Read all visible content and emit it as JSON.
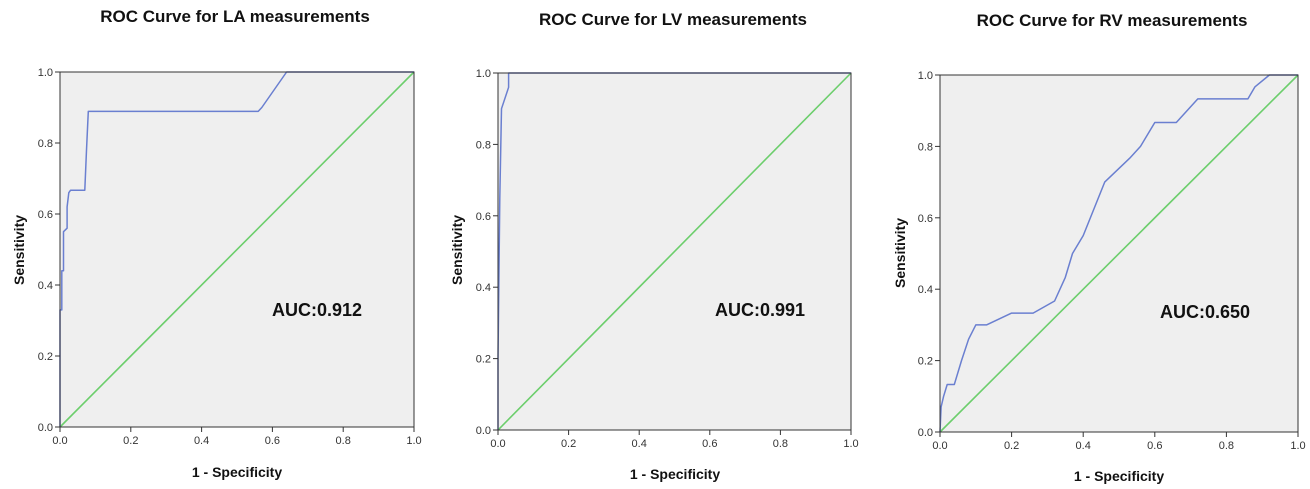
{
  "colors": {
    "plot_bg": "#efefef",
    "roc_line": "#6a7fd0",
    "reference_line": "#6cce6c",
    "frame": "#333333"
  },
  "chart_data": [
    {
      "type": "line",
      "title": "ROC Curve for LA measurements",
      "xlabel": "1 - Specificity",
      "ylabel": "Sensitivity",
      "xlim": [
        0,
        1
      ],
      "ylim": [
        0,
        1
      ],
      "x_ticks": [
        "0.0",
        "0.2",
        "0.4",
        "0.6",
        "0.8",
        "1.0"
      ],
      "y_ticks": [
        "0.0",
        "0.2",
        "0.4",
        "0.6",
        "0.8",
        "1.0"
      ],
      "annotation": "AUC:0.912",
      "grid": false,
      "series": [
        {
          "x": [
            0,
            0,
            0.005,
            0.005,
            0.01,
            0.01,
            0.02,
            0.02,
            0.025,
            0.03,
            0.06,
            0.07,
            0.075,
            0.08,
            0.56,
            0.57,
            0.64,
            1.0
          ],
          "y": [
            0,
            0.33,
            0.33,
            0.44,
            0.44,
            0.55,
            0.56,
            0.62,
            0.66,
            0.667,
            0.667,
            0.667,
            0.78,
            0.889,
            0.889,
            0.9,
            1.0,
            1.0
          ]
        },
        {
          "x": [
            0,
            1
          ],
          "y": [
            0,
            1
          ]
        }
      ]
    },
    {
      "type": "line",
      "title": "ROC Curve for LV measurements",
      "xlabel": "1 - Specificity",
      "ylabel": "Sensitivity",
      "xlim": [
        0,
        1
      ],
      "ylim": [
        0,
        1
      ],
      "x_ticks": [
        "0.0",
        "0.2",
        "0.4",
        "0.6",
        "0.8",
        "1.0"
      ],
      "y_ticks": [
        "0.0",
        "0.2",
        "0.4",
        "0.6",
        "0.8",
        "1.0"
      ],
      "annotation": "AUC:0.991",
      "grid": false,
      "series": [
        {
          "x": [
            0,
            0,
            0.005,
            0.01,
            0.03,
            0.03,
            1.0
          ],
          "y": [
            0,
            0.2,
            0.65,
            0.9,
            0.96,
            1.0,
            1.0
          ]
        },
        {
          "x": [
            0,
            1
          ],
          "y": [
            0,
            1
          ]
        }
      ]
    },
    {
      "type": "line",
      "title": "ROC Curve for RV measurements",
      "xlabel": "1 - Specificity",
      "ylabel": "Sensitivity",
      "xlim": [
        0,
        1
      ],
      "ylim": [
        0,
        1
      ],
      "x_ticks": [
        "0.0",
        "0.2",
        "0.4",
        "0.6",
        "0.8",
        "1.0"
      ],
      "y_ticks": [
        "0.0",
        "0.2",
        "0.4",
        "0.6",
        "0.8",
        "1.0"
      ],
      "annotation": "AUC:0.650",
      "grid": false,
      "series": [
        {
          "x": [
            0,
            0.003,
            0.01,
            0.02,
            0.04,
            0.06,
            0.08,
            0.1,
            0.13,
            0.2,
            0.26,
            0.32,
            0.35,
            0.37,
            0.4,
            0.46,
            0.53,
            0.56,
            0.6,
            0.66,
            0.72,
            0.8,
            0.86,
            0.88,
            0.92,
            0.96,
            1.0
          ],
          "y": [
            0,
            0.07,
            0.1,
            0.133,
            0.133,
            0.2,
            0.26,
            0.3,
            0.3,
            0.333,
            0.333,
            0.367,
            0.433,
            0.5,
            0.55,
            0.7,
            0.767,
            0.8,
            0.867,
            0.867,
            0.933,
            0.933,
            0.933,
            0.967,
            1.0,
            1.0,
            1.0
          ]
        },
        {
          "x": [
            0,
            1
          ],
          "y": [
            0,
            1
          ]
        }
      ]
    }
  ]
}
